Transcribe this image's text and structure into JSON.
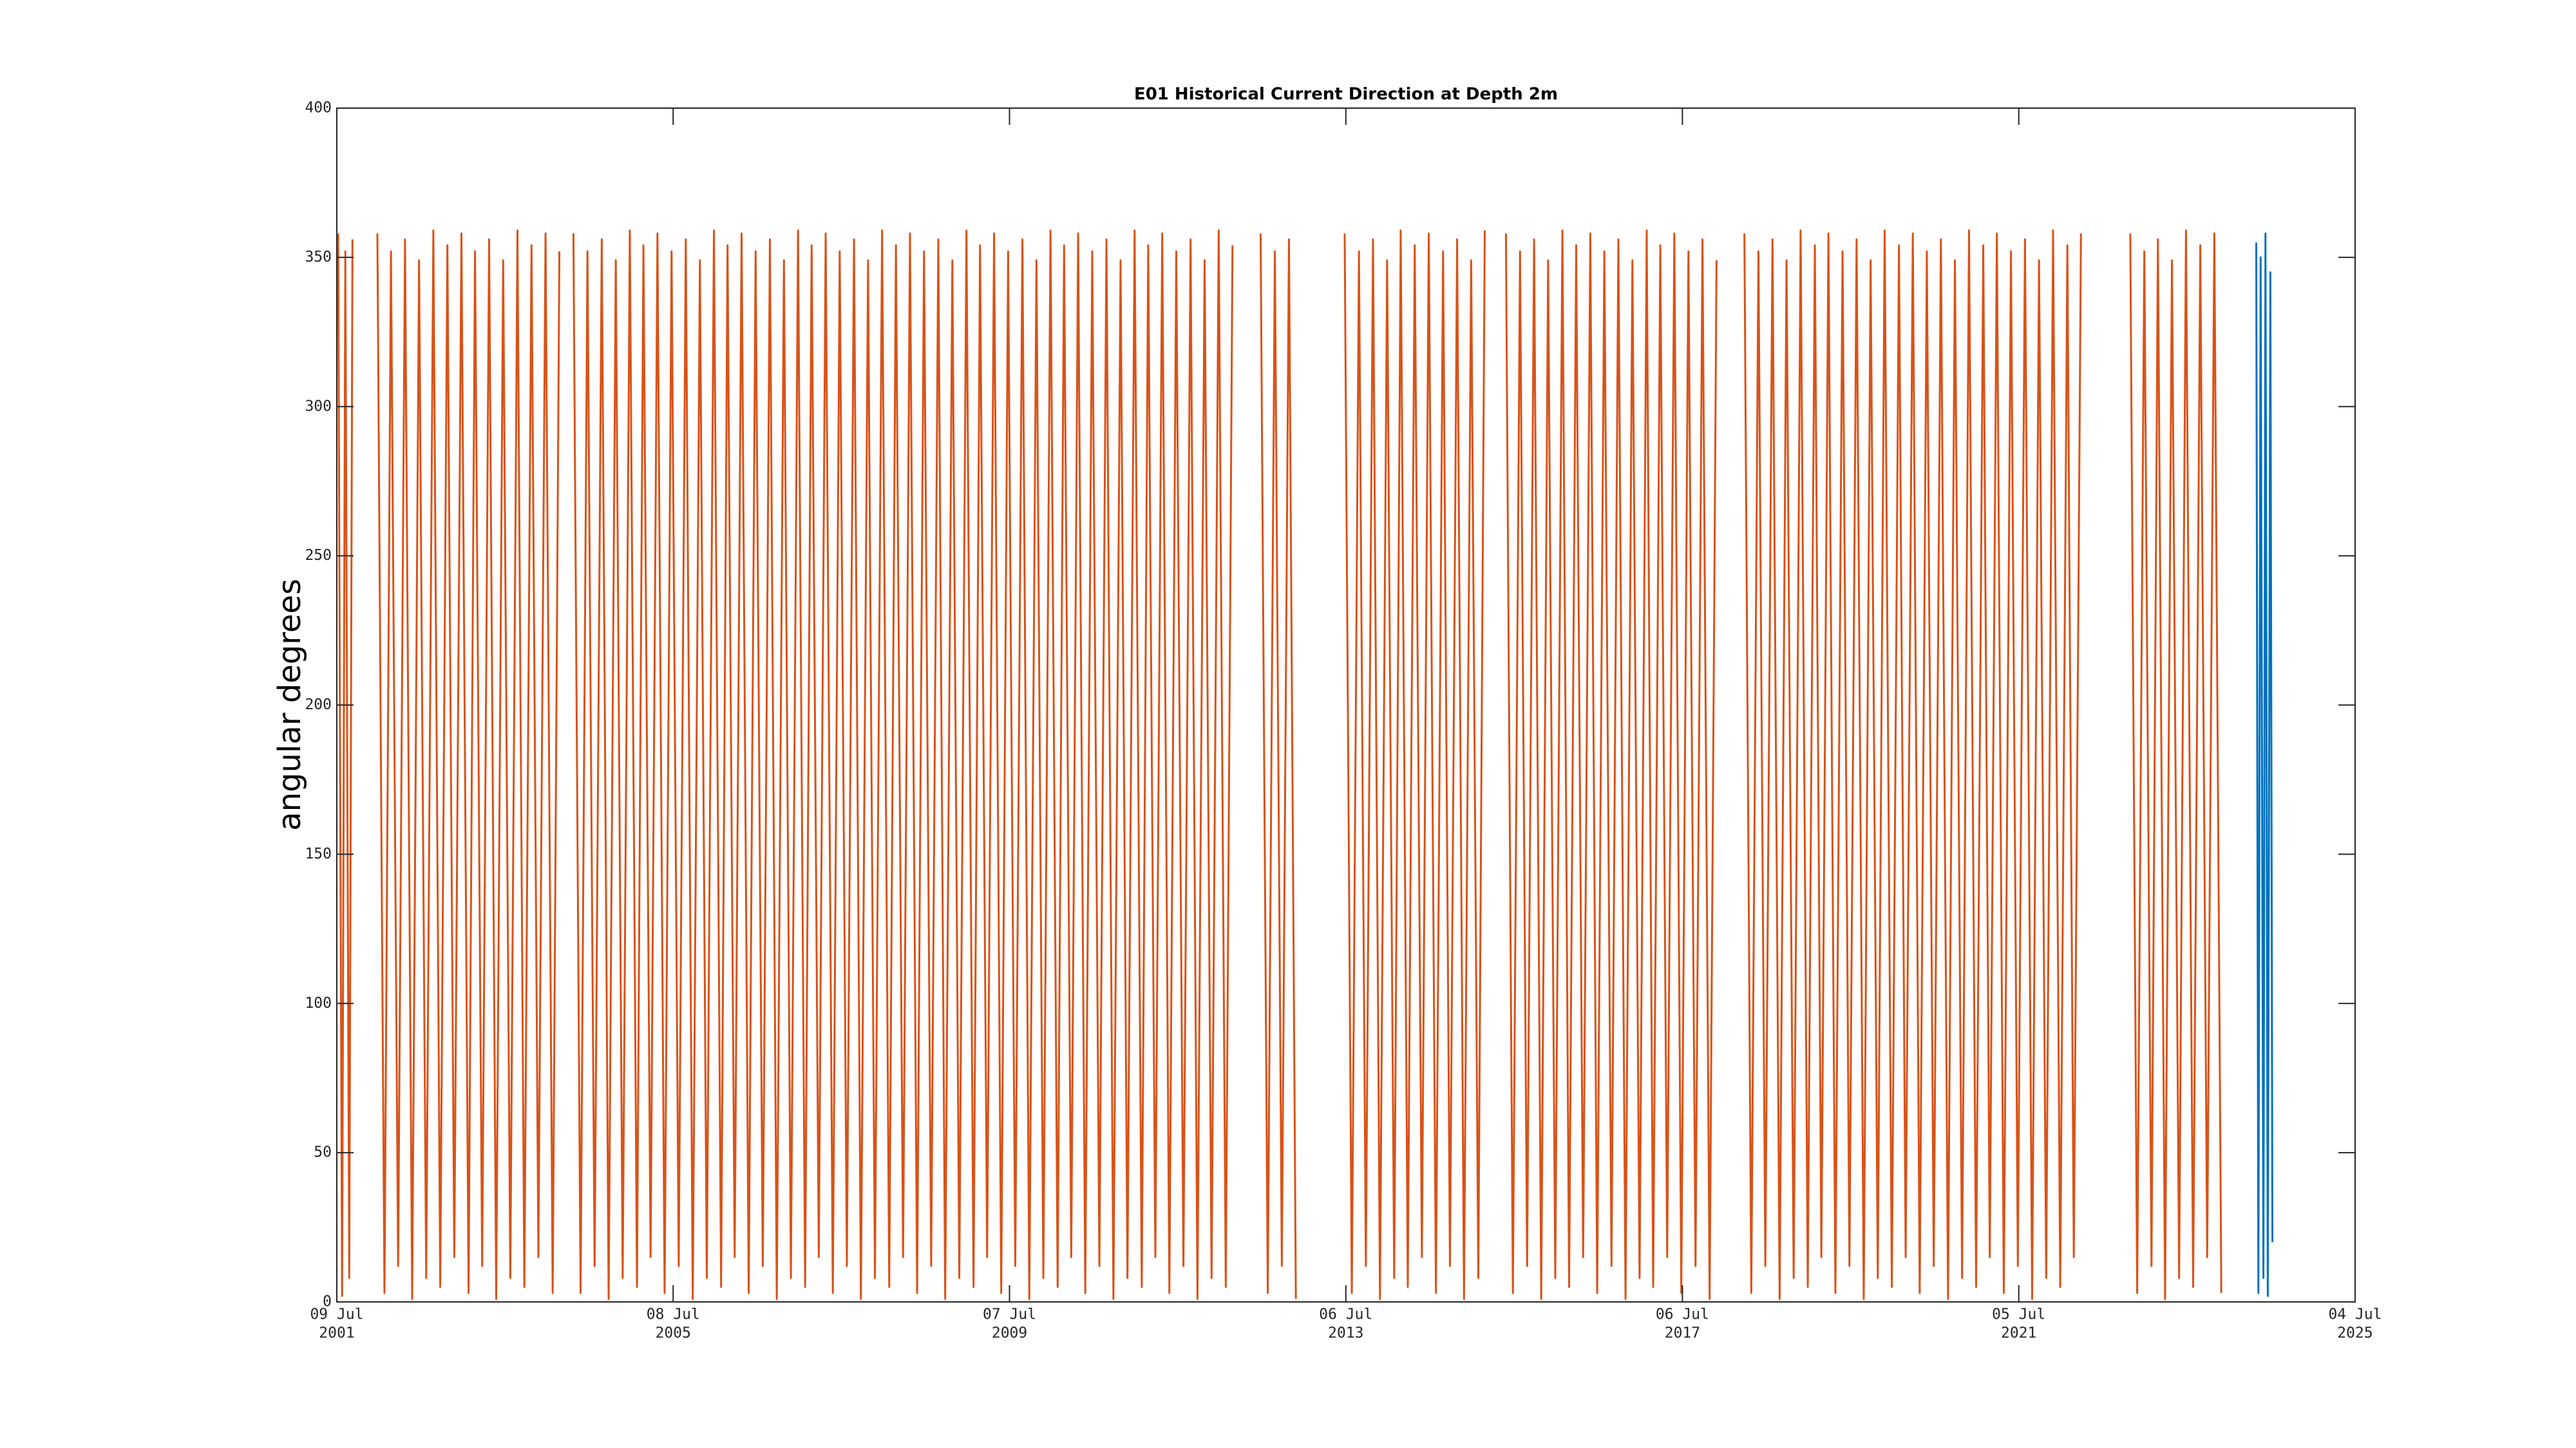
{
  "chart_data": {
    "type": "line",
    "title": "E01 Historical Current Direction at Depth 2m",
    "ylabel": "angular degrees",
    "xlim": [
      "2001-07-09",
      "2025-07-04"
    ],
    "xticks": [
      {
        "value": "2001-07-09",
        "label": [
          "09 Jul",
          "2001"
        ]
      },
      {
        "value": "2005-07-08",
        "label": [
          "08 Jul",
          "2005"
        ]
      },
      {
        "value": "2009-07-07",
        "label": [
          "07 Jul",
          "2009"
        ]
      },
      {
        "value": "2013-07-06",
        "label": [
          "06 Jul",
          "2013"
        ]
      },
      {
        "value": "2017-07-06",
        "label": [
          "06 Jul",
          "2017"
        ]
      },
      {
        "value": "2021-07-05",
        "label": [
          "05 Jul",
          "2021"
        ]
      },
      {
        "value": "2025-07-04",
        "label": [
          "04 Jul",
          "2025"
        ]
      }
    ],
    "ylim": [
      0,
      400
    ],
    "yticks": [
      0,
      50,
      100,
      150,
      200,
      250,
      300,
      350,
      400
    ],
    "grid": false,
    "series": [
      {
        "color": "#d95319",
        "x": [
          "2001-07-15",
          "2001-08-01",
          "2001-08-15",
          "2001-09-01",
          "2001-09-15",
          "2001-11-01",
          "2002-01-01",
          "2002-02-01",
          "2002-03-01",
          "2002-04-01",
          "2002-05-01",
          "2002-06-01",
          "2002-07-01",
          "2002-08-01",
          "2002-09-01",
          "2002-10-01",
          "2002-11-01",
          "2002-12-01",
          "2003-01-01",
          "2003-02-01",
          "2003-03-01",
          "2003-04-01",
          "2003-05-01",
          "2003-06-01",
          "2003-07-01",
          "2003-08-01",
          "2003-09-01",
          "2003-10-01",
          "2003-11-01",
          "2003-12-01",
          "2004-01-01",
          "2004-02-01",
          "2004-03-01",
          "2004-04-01",
          "2004-05-01",
          "2004-06-01",
          "2004-07-01",
          "2004-08-01",
          "2004-09-01",
          "2004-10-01",
          "2004-11-01",
          "2004-12-01",
          "2005-01-01",
          "2005-02-01",
          "2005-03-01",
          "2005-04-01",
          "2005-05-01",
          "2005-06-01",
          "2005-07-01",
          "2005-08-01",
          "2005-09-01",
          "2005-10-01",
          "2005-11-01",
          "2005-12-01",
          "2006-01-01",
          "2006-02-01",
          "2006-03-01",
          "2006-04-01",
          "2006-05-01",
          "2006-06-01",
          "2006-07-01",
          "2006-08-01",
          "2006-09-01",
          "2006-10-01",
          "2006-11-01",
          "2006-12-01",
          "2007-01-01",
          "2007-02-01",
          "2007-03-01",
          "2007-04-01",
          "2007-05-01",
          "2007-06-01",
          "2007-07-01",
          "2007-08-01",
          "2007-09-01",
          "2007-10-01",
          "2007-11-01",
          "2007-12-01",
          "2008-01-01",
          "2008-02-01",
          "2008-03-01",
          "2008-04-01",
          "2008-05-01",
          "2008-06-01",
          "2008-07-01",
          "2008-08-01",
          "2008-09-01",
          "2008-10-01",
          "2008-11-01",
          "2008-12-01",
          "2009-01-01",
          "2009-02-01",
          "2009-03-01",
          "2009-04-01",
          "2009-05-01",
          "2009-06-01",
          "2009-07-01",
          "2009-08-01",
          "2009-09-01",
          "2009-10-01",
          "2009-11-01",
          "2009-12-01",
          "2010-01-01",
          "2010-02-01",
          "2010-03-01",
          "2010-04-01",
          "2010-05-01",
          "2010-06-01",
          "2010-07-01",
          "2010-08-01",
          "2010-09-01",
          "2010-10-01",
          "2010-11-01",
          "2010-12-01",
          "2011-01-01",
          "2011-02-01",
          "2011-03-01",
          "2011-04-01",
          "2011-05-01",
          "2011-06-01",
          "2011-07-01",
          "2011-08-01",
          "2011-09-01",
          "2011-10-01",
          "2011-11-01",
          "2011-12-01",
          "2012-01-01",
          "2012-02-01",
          "2012-03-01",
          "2012-05-01",
          "2012-07-01",
          "2012-08-01",
          "2012-09-01",
          "2012-10-01",
          "2012-11-01",
          "2012-12-01",
          "2013-03-01",
          "2013-07-01",
          "2013-08-01",
          "2013-09-01",
          "2013-10-01",
          "2013-11-01",
          "2013-12-01",
          "2014-01-01",
          "2014-02-01",
          "2014-03-01",
          "2014-04-01",
          "2014-05-01",
          "2014-06-01",
          "2014-07-01",
          "2014-08-01",
          "2014-09-01",
          "2014-10-01",
          "2014-11-01",
          "2014-12-01",
          "2015-01-01",
          "2015-02-01",
          "2015-03-01",
          "2015-04-15",
          "2015-06-01",
          "2015-07-01",
          "2015-08-01",
          "2015-09-01",
          "2015-10-01",
          "2015-11-01",
          "2015-12-01",
          "2016-01-01",
          "2016-02-01",
          "2016-03-01",
          "2016-04-01",
          "2016-05-01",
          "2016-06-01",
          "2016-07-01",
          "2016-08-01",
          "2016-09-01",
          "2016-10-01",
          "2016-11-01",
          "2016-12-01",
          "2017-01-01",
          "2017-02-01",
          "2017-03-01",
          "2017-04-01",
          "2017-05-01",
          "2017-06-01",
          "2017-07-01",
          "2017-08-01",
          "2017-09-01",
          "2017-10-01",
          "2017-11-01",
          "2017-12-01",
          "2018-02-01",
          "2018-04-01",
          "2018-05-01",
          "2018-06-01",
          "2018-07-01",
          "2018-08-01",
          "2018-09-01",
          "2018-10-01",
          "2018-11-01",
          "2018-12-01",
          "2019-01-01",
          "2019-02-01",
          "2019-03-01",
          "2019-04-01",
          "2019-05-01",
          "2019-06-01",
          "2019-07-01",
          "2019-08-01",
          "2019-09-01",
          "2019-10-01",
          "2019-11-01",
          "2019-12-01",
          "2020-01-01",
          "2020-02-01",
          "2020-03-01",
          "2020-04-01",
          "2020-05-01",
          "2020-06-01",
          "2020-07-01",
          "2020-08-01",
          "2020-09-01",
          "2020-10-01",
          "2020-11-01",
          "2020-12-01",
          "2021-01-01",
          "2021-02-01",
          "2021-03-01",
          "2021-04-01",
          "2021-05-01",
          "2021-06-01",
          "2021-07-01",
          "2021-08-01",
          "2021-09-01",
          "2021-10-01",
          "2021-11-01",
          "2021-12-01",
          "2022-01-01",
          "2022-02-01",
          "2022-03-01",
          "2022-04-01",
          "2022-07-01",
          "2022-11-01",
          "2022-12-01",
          "2023-01-01",
          "2023-02-01",
          "2023-03-01",
          "2023-04-01",
          "2023-05-01",
          "2023-06-01",
          "2023-07-01",
          "2023-08-01",
          "2023-09-01",
          "2023-10-01",
          "2023-11-01",
          "2023-12-01"
        ],
        "values": [
          358,
          2,
          352,
          8,
          356,
          null,
          358,
          3,
          352,
          12,
          356,
          1,
          349,
          8,
          359,
          5,
          354,
          15,
          358,
          3,
          352,
          12,
          356,
          1,
          349,
          8,
          359,
          5,
          354,
          15,
          358,
          3,
          352,
          null,
          358,
          3,
          352,
          12,
          356,
          1,
          349,
          8,
          359,
          5,
          354,
          15,
          358,
          3,
          352,
          12,
          356,
          1,
          349,
          8,
          359,
          5,
          354,
          15,
          358,
          3,
          352,
          12,
          356,
          1,
          349,
          8,
          359,
          5,
          354,
          15,
          358,
          3,
          352,
          12,
          356,
          1,
          349,
          8,
          359,
          5,
          354,
          15,
          358,
          3,
          352,
          12,
          356,
          1,
          349,
          8,
          359,
          5,
          354,
          15,
          358,
          3,
          352,
          12,
          356,
          1,
          349,
          8,
          359,
          5,
          354,
          15,
          358,
          3,
          352,
          12,
          356,
          1,
          349,
          8,
          359,
          5,
          354,
          15,
          358,
          3,
          352,
          12,
          356,
          1,
          349,
          8,
          359,
          5,
          354,
          null,
          358,
          3,
          352,
          12,
          356,
          1,
          null,
          358,
          3,
          352,
          12,
          356,
          1,
          349,
          8,
          359,
          5,
          354,
          15,
          358,
          3,
          352,
          12,
          356,
          1,
          349,
          8,
          359,
          null,
          358,
          3,
          352,
          12,
          356,
          1,
          349,
          8,
          359,
          5,
          354,
          15,
          358,
          3,
          352,
          12,
          356,
          1,
          349,
          8,
          359,
          5,
          354,
          15,
          358,
          3,
          352,
          12,
          356,
          1,
          349,
          null,
          358,
          3,
          352,
          12,
          356,
          1,
          349,
          8,
          359,
          5,
          354,
          15,
          358,
          3,
          352,
          12,
          356,
          1,
          349,
          8,
          359,
          5,
          354,
          15,
          358,
          3,
          352,
          12,
          356,
          1,
          349,
          8,
          359,
          5,
          354,
          15,
          358,
          3,
          352,
          12,
          356,
          1,
          349,
          8,
          359,
          5,
          354,
          15,
          358,
          null,
          358,
          3,
          352,
          12,
          356,
          1,
          349,
          8,
          359,
          5,
          354,
          15,
          358,
          3
        ]
      },
      {
        "color": "#0072bd",
        "x": [
          "2024-05-01",
          "2024-05-10",
          "2024-05-20",
          "2024-06-01",
          "2024-06-10",
          "2024-06-20",
          "2024-07-01",
          "2024-07-10"
        ],
        "values": [
          355,
          3,
          350,
          8,
          358,
          2,
          345,
          20
        ]
      }
    ]
  }
}
